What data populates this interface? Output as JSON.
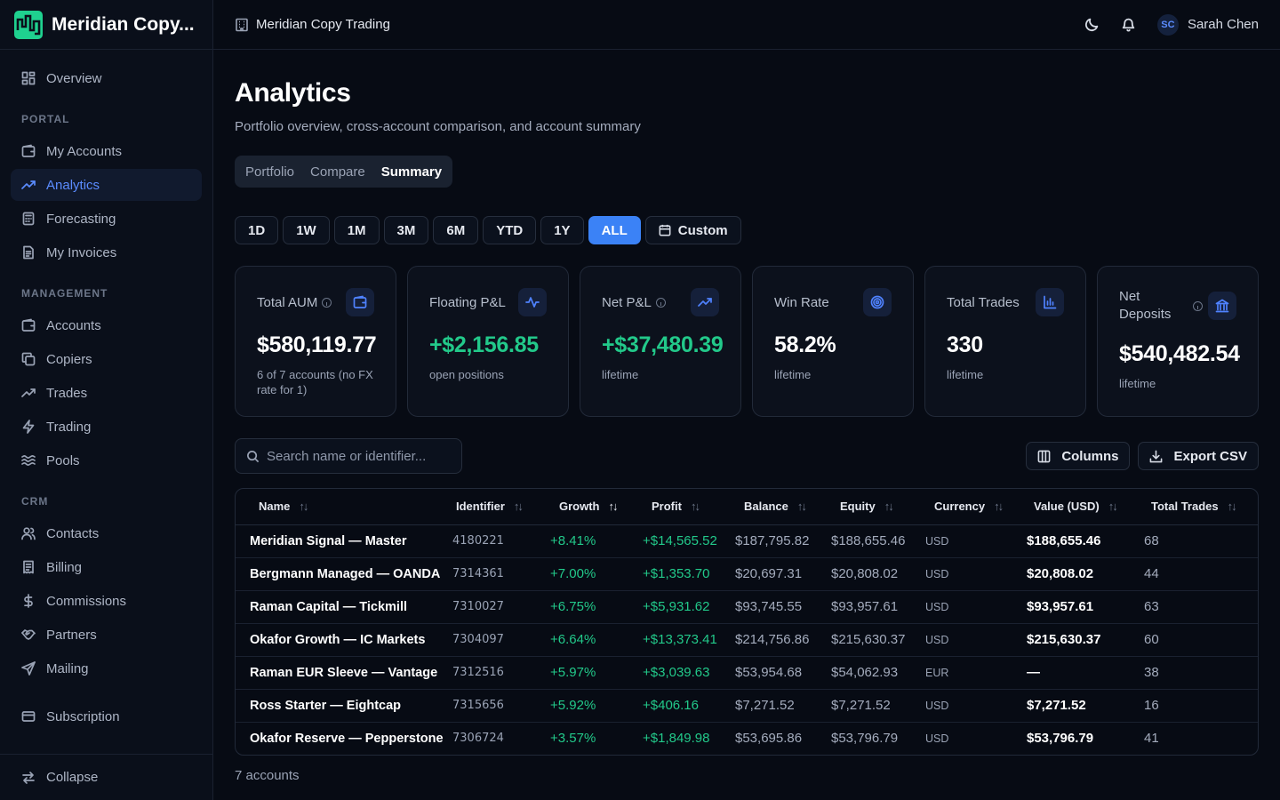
{
  "brand": {
    "name": "Meridian Copy..."
  },
  "topbar": {
    "org": "Meridian Copy Trading",
    "user_initials": "SC",
    "user_name": "Sarah Chen"
  },
  "sidebar": {
    "overview": "Overview",
    "portal_title": "PORTAL",
    "portal": [
      "My Accounts",
      "Analytics",
      "Forecasting",
      "My Invoices"
    ],
    "management_title": "MANAGEMENT",
    "management": [
      "Accounts",
      "Copiers",
      "Trades",
      "Trading",
      "Pools"
    ],
    "crm_title": "CRM",
    "crm": [
      "Contacts",
      "Billing",
      "Commissions",
      "Partners",
      "Mailing"
    ],
    "subscription": "Subscription",
    "collapse": "Collapse"
  },
  "page": {
    "title": "Analytics",
    "subtitle": "Portfolio overview, cross-account comparison, and account summary",
    "tabs": [
      "Portfolio",
      "Compare",
      "Summary"
    ],
    "active_tab": "Summary"
  },
  "ranges": [
    "1D",
    "1W",
    "1M",
    "3M",
    "6M",
    "YTD",
    "1Y",
    "ALL"
  ],
  "active_range": "ALL",
  "custom_label": "Custom",
  "cards": [
    {
      "label": "Total AUM",
      "value": "$580,119.77",
      "sub": "6 of 7 accounts (no FX rate for 1)",
      "icon": "wallet-icon"
    },
    {
      "label": "Floating P&L",
      "value": "+$2,156.85",
      "sub": "open positions",
      "icon": "activity-icon"
    },
    {
      "label": "Net P&L",
      "value": "+$37,480.39",
      "sub": "lifetime",
      "icon": "trending-up-icon"
    },
    {
      "label": "Win Rate",
      "value": "58.2%",
      "sub": "lifetime",
      "icon": "target-icon"
    },
    {
      "label": "Total Trades",
      "value": "330",
      "sub": "lifetime",
      "icon": "bar-chart-icon"
    },
    {
      "label": "Net Deposits",
      "value": "$540,482.54",
      "sub": "lifetime",
      "icon": "bank-icon"
    }
  ],
  "search": {
    "placeholder": "Search name or identifier..."
  },
  "toolbar": {
    "columns": "Columns",
    "export": "Export CSV"
  },
  "table": {
    "headers": [
      "Name",
      "Identifier",
      "Growth",
      "Profit",
      "Balance",
      "Equity",
      "Currency",
      "Value (USD)",
      "Total Trades"
    ],
    "rows": [
      [
        "Meridian Signal — Master",
        "4180221",
        "+8.41%",
        "+$14,565.52",
        "$187,795.82",
        "$188,655.46",
        "USD",
        "$188,655.46",
        "68"
      ],
      [
        "Bergmann Managed — OANDA",
        "7314361",
        "+7.00%",
        "+$1,353.70",
        "$20,697.31",
        "$20,808.02",
        "USD",
        "$20,808.02",
        "44"
      ],
      [
        "Raman Capital — Tickmill",
        "7310027",
        "+6.75%",
        "+$5,931.62",
        "$93,745.55",
        "$93,957.61",
        "USD",
        "$93,957.61",
        "63"
      ],
      [
        "Okafor Growth — IC Markets",
        "7304097",
        "+6.64%",
        "+$13,373.41",
        "$214,756.86",
        "$215,630.37",
        "USD",
        "$215,630.37",
        "60"
      ],
      [
        "Raman EUR Sleeve — Vantage",
        "7312516",
        "+5.97%",
        "+$3,039.63",
        "$53,954.68",
        "$54,062.93",
        "EUR",
        "—",
        "38"
      ],
      [
        "Ross Starter — Eightcap",
        "7315656",
        "+5.92%",
        "+$406.16",
        "$7,271.52",
        "$7,271.52",
        "USD",
        "$7,271.52",
        "16"
      ],
      [
        "Okafor Reserve — Pepperstone",
        "7306724",
        "+3.57%",
        "+$1,849.98",
        "$53,695.86",
        "$53,796.79",
        "USD",
        "$53,796.79",
        "41"
      ]
    ]
  },
  "footer": {
    "count": "7 accounts"
  },
  "colors": {
    "accent": "#3b82f6",
    "positive": "#22c98a",
    "background": "#070b14"
  }
}
